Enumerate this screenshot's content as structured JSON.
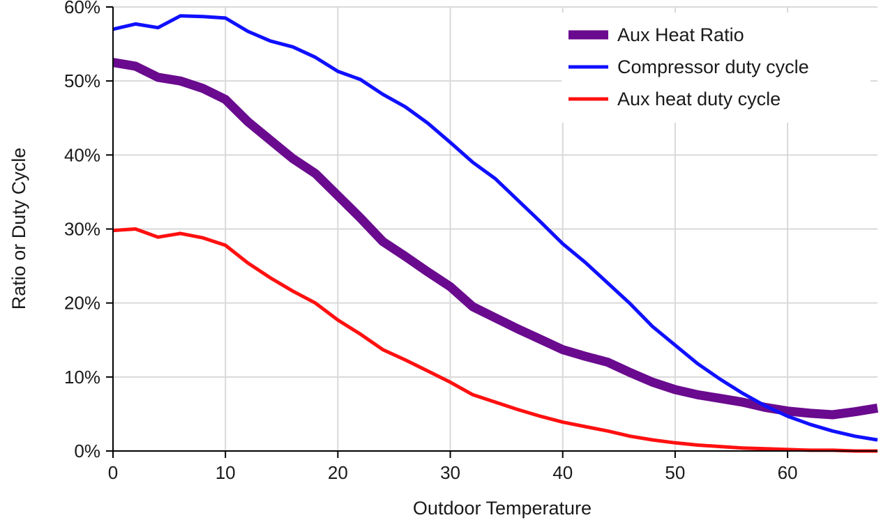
{
  "chart_data": {
    "type": "line",
    "title": "",
    "xlabel": "Outdoor Temperature",
    "ylabel": "Ratio or Duty Cycle",
    "xlim": [
      0,
      68
    ],
    "ylim": [
      0,
      0.6
    ],
    "x_ticks": [
      0,
      10,
      20,
      30,
      40,
      50,
      60
    ],
    "x_tick_labels": [
      "0",
      "10",
      "20",
      "30",
      "40",
      "50",
      "60"
    ],
    "y_ticks": [
      0,
      0.1,
      0.2,
      0.3,
      0.4,
      0.5,
      0.6
    ],
    "y_tick_labels": [
      "0%",
      "10%",
      "20%",
      "30%",
      "40%",
      "50%",
      "60%"
    ],
    "grid": true,
    "legend_position": "top-right",
    "x": [
      0,
      2,
      4,
      6,
      8,
      10,
      12,
      14,
      16,
      18,
      20,
      22,
      24,
      26,
      28,
      30,
      32,
      34,
      36,
      38,
      40,
      42,
      44,
      46,
      48,
      50,
      52,
      54,
      56,
      58,
      60,
      62,
      64,
      66,
      68
    ],
    "series": [
      {
        "name": "Aux Heat Ratio",
        "color": "#6a0a8e",
        "values": [
          0.525,
          0.52,
          0.505,
          0.5,
          0.49,
          0.475,
          0.445,
          0.42,
          0.395,
          0.375,
          0.345,
          0.315,
          0.283,
          0.263,
          0.242,
          0.222,
          0.195,
          0.18,
          0.165,
          0.151,
          0.137,
          0.128,
          0.12,
          0.106,
          0.093,
          0.083,
          0.076,
          0.071,
          0.066,
          0.059,
          0.054,
          0.051,
          0.049,
          0.053,
          0.058
        ]
      },
      {
        "name": "Compressor duty cycle",
        "color": "#1010ff",
        "values": [
          0.57,
          0.577,
          0.572,
          0.588,
          0.587,
          0.585,
          0.567,
          0.554,
          0.546,
          0.532,
          0.513,
          0.502,
          0.482,
          0.465,
          0.443,
          0.417,
          0.39,
          0.368,
          0.339,
          0.31,
          0.28,
          0.255,
          0.227,
          0.199,
          0.168,
          0.143,
          0.118,
          0.097,
          0.078,
          0.061,
          0.047,
          0.036,
          0.027,
          0.02,
          0.015
        ]
      },
      {
        "name": "Aux heat duty cycle",
        "color": "#ff1010",
        "values": [
          0.298,
          0.3,
          0.289,
          0.294,
          0.288,
          0.278,
          0.254,
          0.234,
          0.216,
          0.2,
          0.177,
          0.158,
          0.137,
          0.123,
          0.108,
          0.093,
          0.076,
          0.066,
          0.056,
          0.047,
          0.039,
          0.033,
          0.027,
          0.02,
          0.015,
          0.011,
          0.008,
          0.006,
          0.004,
          0.003,
          0.002,
          0.001,
          0.001,
          0.0,
          0.0
        ]
      }
    ]
  }
}
